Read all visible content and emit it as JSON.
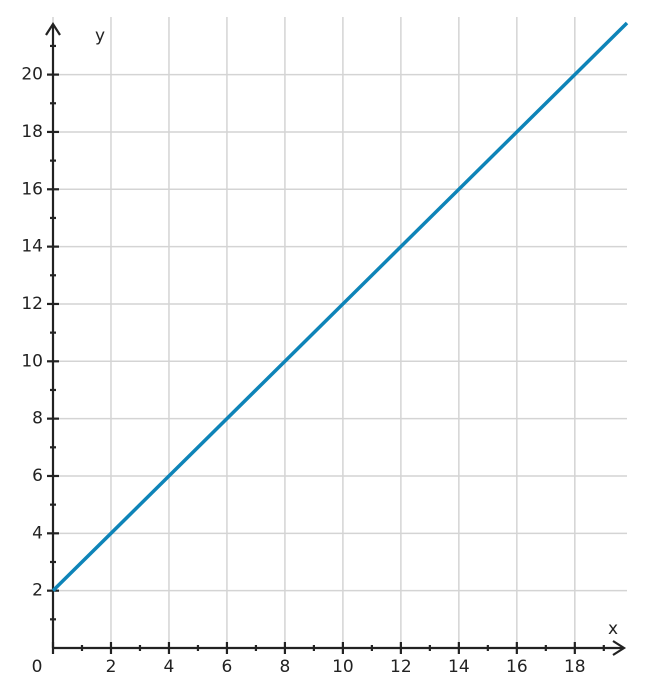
{
  "chart_data": {
    "type": "line",
    "x_label": "x",
    "y_label": "y",
    "x": [
      0,
      19.8
    ],
    "series": [
      {
        "color": "#0e84b8",
        "values": [
          2,
          21.8
        ]
      }
    ],
    "xlim": [
      0,
      19.8
    ],
    "ylim": [
      0,
      21.8
    ],
    "xticks": [
      0,
      2,
      4,
      6,
      8,
      10,
      12,
      14,
      16,
      18
    ],
    "yticks": [
      2,
      4,
      6,
      8,
      10,
      12,
      14,
      16,
      18,
      20
    ],
    "x_minor_ticks": [
      1,
      3,
      5,
      7,
      9,
      11,
      13,
      15,
      17,
      19
    ],
    "y_minor_ticks": [
      1,
      3,
      5,
      7,
      9,
      11,
      13,
      15,
      17,
      19,
      21
    ],
    "grid": true
  }
}
